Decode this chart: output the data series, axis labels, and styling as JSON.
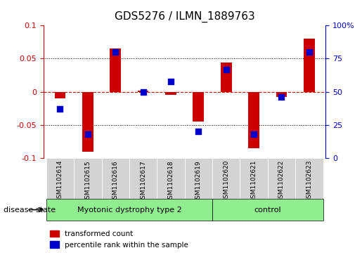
{
  "title": "GDS5276 / ILMN_1889763",
  "samples": [
    "GSM1102614",
    "GSM1102615",
    "GSM1102616",
    "GSM1102617",
    "GSM1102618",
    "GSM1102619",
    "GSM1102620",
    "GSM1102621",
    "GSM1102622",
    "GSM1102623"
  ],
  "red_values": [
    -0.01,
    -0.09,
    0.065,
    0.002,
    -0.005,
    -0.045,
    0.044,
    -0.085,
    -0.008,
    0.08
  ],
  "blue_values_pct": [
    37,
    18,
    80,
    50,
    58,
    20,
    67,
    18,
    46,
    80
  ],
  "ylim_left": [
    -0.1,
    0.1
  ],
  "ylim_right": [
    0,
    100
  ],
  "yticks_left": [
    -0.1,
    -0.05,
    0,
    0.05,
    0.1
  ],
  "yticks_right": [
    0,
    25,
    50,
    75,
    100
  ],
  "ytick_labels_left": [
    "-0.1",
    "-0.05",
    "0",
    "0.05",
    "0.1"
  ],
  "ytick_labels_right": [
    "0",
    "25",
    "50",
    "75",
    "100%"
  ],
  "groups": [
    {
      "label": "Myotonic dystrophy type 2",
      "start": 0,
      "end": 6,
      "color": "#90EE90"
    },
    {
      "label": "control",
      "start": 6,
      "end": 10,
      "color": "#90EE90"
    }
  ],
  "disease_state_label": "disease state",
  "legend_red": "transformed count",
  "legend_blue": "percentile rank within the sample",
  "bar_color": "#CC0000",
  "dot_color": "#0000CC",
  "bar_width": 0.4,
  "dot_size": 40,
  "bg_color": "#FFFFFF",
  "ax_left_color": "#CC0000",
  "ax_right_color": "#0000CC",
  "sample_box_color": "#D3D3D3"
}
